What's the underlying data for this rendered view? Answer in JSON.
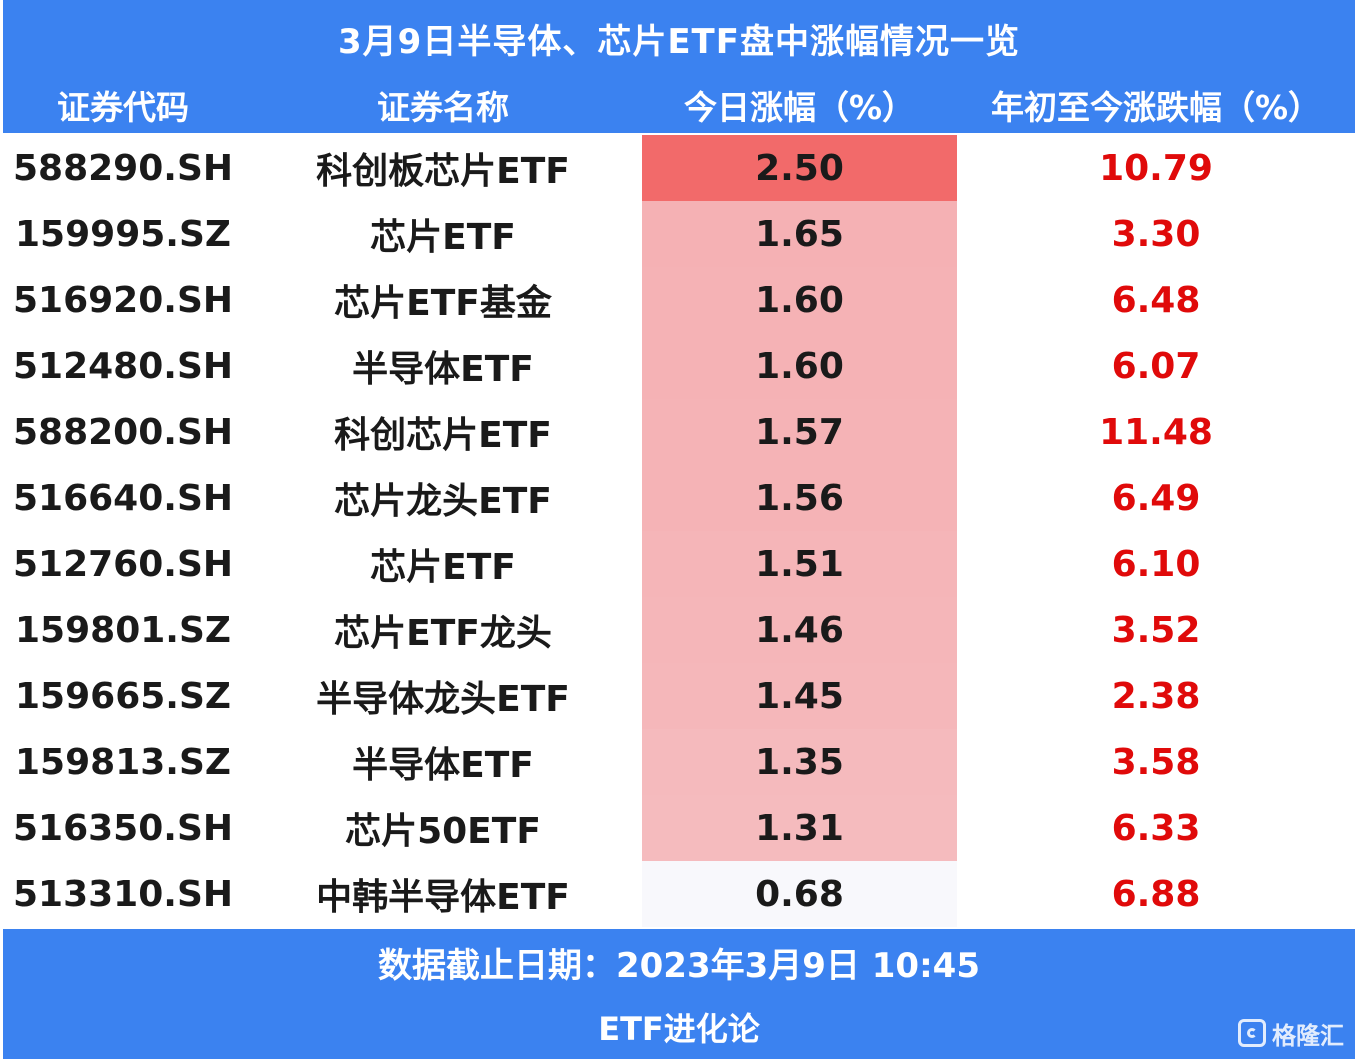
{
  "title": "3月9日半导体、芯片ETF盘中涨幅情况一览",
  "columns": {
    "code": "证券代码",
    "name": "证券名称",
    "today": "今日涨幅（%）",
    "ytd": "年初至今涨跌幅（%）"
  },
  "colors": {
    "header_bg": "#3b82f0",
    "ytd_text": "#e00a0a",
    "heat_max": "#f26a6a",
    "heat_high": "#f5b1b4",
    "heat_low": "#f8f8fc"
  },
  "rows": [
    {
      "code": "588290.SH",
      "name": "科创板芯片ETF",
      "today": "2.50",
      "ytd": "10.79"
    },
    {
      "code": "159995.SZ",
      "name": "芯片ETF",
      "today": "1.65",
      "ytd": "3.30"
    },
    {
      "code": "516920.SH",
      "name": "芯片ETF基金",
      "today": "1.60",
      "ytd": "6.48"
    },
    {
      "code": "512480.SH",
      "name": "半导体ETF",
      "today": "1.60",
      "ytd": "6.07"
    },
    {
      "code": "588200.SH",
      "name": "科创芯片ETF",
      "today": "1.57",
      "ytd": "11.48"
    },
    {
      "code": "516640.SH",
      "name": "芯片龙头ETF",
      "today": "1.56",
      "ytd": "6.49"
    },
    {
      "code": "512760.SH",
      "name": "芯片ETF",
      "today": "1.51",
      "ytd": "6.10"
    },
    {
      "code": "159801.SZ",
      "name": "芯片ETF龙头",
      "today": "1.46",
      "ytd": "3.52"
    },
    {
      "code": "159665.SZ",
      "name": "半导体龙头ETF",
      "today": "1.45",
      "ytd": "2.38"
    },
    {
      "code": "159813.SZ",
      "name": "半导体ETF",
      "today": "1.35",
      "ytd": "3.58"
    },
    {
      "code": "516350.SH",
      "name": "芯片50ETF",
      "today": "1.31",
      "ytd": "6.33"
    },
    {
      "code": "513310.SH",
      "name": "中韩半导体ETF",
      "today": "0.68",
      "ytd": "6.88"
    }
  ],
  "chart_data": {
    "type": "table",
    "title": "3月9日半导体、芯片ETF盘中涨幅情况一览",
    "columns": [
      "证券代码",
      "证券名称",
      "今日涨幅（%）",
      "年初至今涨跌幅（%）"
    ],
    "rows": [
      [
        "588290.SH",
        "科创板芯片ETF",
        2.5,
        10.79
      ],
      [
        "159995.SZ",
        "芯片ETF",
        1.65,
        3.3
      ],
      [
        "516920.SH",
        "芯片ETF基金",
        1.6,
        6.48
      ],
      [
        "512480.SH",
        "半导体ETF",
        1.6,
        6.07
      ],
      [
        "588200.SH",
        "科创芯片ETF",
        1.57,
        11.48
      ],
      [
        "516640.SH",
        "芯片龙头ETF",
        1.56,
        6.49
      ],
      [
        "512760.SH",
        "芯片ETF",
        1.51,
        6.1
      ],
      [
        "159801.SZ",
        "芯片ETF龙头",
        1.46,
        3.52
      ],
      [
        "159665.SZ",
        "半导体龙头ETF",
        1.45,
        2.38
      ],
      [
        "159813.SZ",
        "半导体ETF",
        1.35,
        3.58
      ],
      [
        "516350.SH",
        "芯片50ETF",
        1.31,
        6.33
      ],
      [
        "513310.SH",
        "中韩半导体ETF",
        0.68,
        6.88
      ]
    ]
  },
  "footer": {
    "date_note": "数据截止日期：2023年3月9日 10:45",
    "source": "ETF进化论"
  },
  "watermark": {
    "text": "格隆汇",
    "icon": "gelonghui-logo-icon"
  }
}
